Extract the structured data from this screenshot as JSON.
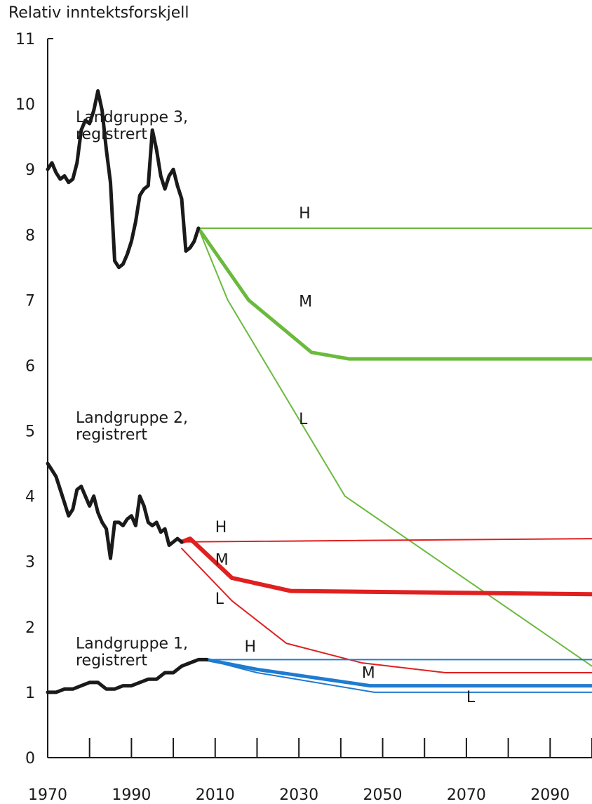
{
  "chart_data": {
    "type": "line",
    "title": "",
    "ylabel": "Relativ inntektsforskjell",
    "xlabel": "",
    "xlim": [
      1970,
      2100
    ],
    "ylim": [
      0,
      11
    ],
    "x_ticks": [
      1970,
      1990,
      2010,
      2030,
      2050,
      2070,
      2090
    ],
    "y_ticks": [
      0,
      1,
      2,
      3,
      4,
      5,
      6,
      7,
      8,
      9,
      10,
      11
    ],
    "grid": false,
    "colors": {
      "historical": "#1a1a1a",
      "group3": "#6aba3c",
      "group2": "#e02020",
      "group1": "#1f7bd0"
    },
    "groups": [
      {
        "label_line1": "Landgruppe 3,",
        "label_line2": "registrert",
        "color_key": "group3",
        "historical": [
          [
            1970,
            9.0
          ],
          [
            1971,
            9.1
          ],
          [
            1972,
            8.95
          ],
          [
            1973,
            8.85
          ],
          [
            1974,
            8.9
          ],
          [
            1975,
            8.8
          ],
          [
            1976,
            8.85
          ],
          [
            1977,
            9.1
          ],
          [
            1978,
            9.6
          ],
          [
            1979,
            9.75
          ],
          [
            1980,
            9.7
          ],
          [
            1981,
            9.9
          ],
          [
            1982,
            10.2
          ],
          [
            1983,
            9.9
          ],
          [
            1984,
            9.3
          ],
          [
            1985,
            8.8
          ],
          [
            1986,
            7.6
          ],
          [
            1987,
            7.5
          ],
          [
            1988,
            7.55
          ],
          [
            1989,
            7.7
          ],
          [
            1990,
            7.9
          ],
          [
            1991,
            8.2
          ],
          [
            1992,
            8.6
          ],
          [
            1993,
            8.7
          ],
          [
            1994,
            8.75
          ],
          [
            1995,
            9.6
          ],
          [
            1996,
            9.3
          ],
          [
            1997,
            8.9
          ],
          [
            1998,
            8.7
          ],
          [
            1999,
            8.9
          ],
          [
            2000,
            9.0
          ],
          [
            2001,
            8.75
          ],
          [
            2002,
            8.55
          ],
          [
            2003,
            7.75
          ],
          [
            2004,
            7.8
          ],
          [
            2005,
            7.9
          ],
          [
            2006,
            8.1
          ]
        ],
        "projections": [
          {
            "name": "H",
            "width": 2,
            "points": [
              [
                2006,
                8.1
              ],
              [
                2100,
                8.1
              ]
            ]
          },
          {
            "name": "M",
            "width": 5,
            "points": [
              [
                2006,
                8.1
              ],
              [
                2018,
                7.0
              ],
              [
                2033,
                6.2
              ],
              [
                2042,
                6.1
              ],
              [
                2100,
                6.1
              ]
            ]
          },
          {
            "name": "L",
            "width": 2,
            "points": [
              [
                2006,
                8.1
              ],
              [
                2013,
                7.0
              ],
              [
                2041,
                4.0
              ],
              [
                2100,
                1.4
              ]
            ]
          }
        ],
        "proj_labels": [
          {
            "text": "H",
            "x": 2030,
            "y": 8.25
          },
          {
            "text": "M",
            "x": 2030,
            "y": 6.9
          },
          {
            "text": "L",
            "x": 2030,
            "y": 5.1
          }
        ]
      },
      {
        "label_line1": "Landgruppe 2,",
        "label_line2": "registrert",
        "color_key": "group2",
        "historical": [
          [
            1970,
            4.5
          ],
          [
            1971,
            4.4
          ],
          [
            1972,
            4.3
          ],
          [
            1973,
            4.1
          ],
          [
            1974,
            3.9
          ],
          [
            1975,
            3.7
          ],
          [
            1976,
            3.8
          ],
          [
            1977,
            4.1
          ],
          [
            1978,
            4.15
          ],
          [
            1979,
            4.0
          ],
          [
            1980,
            3.85
          ],
          [
            1981,
            4.0
          ],
          [
            1982,
            3.75
          ],
          [
            1983,
            3.6
          ],
          [
            1984,
            3.5
          ],
          [
            1985,
            3.05
          ],
          [
            1986,
            3.6
          ],
          [
            1987,
            3.6
          ],
          [
            1988,
            3.55
          ],
          [
            1989,
            3.65
          ],
          [
            1990,
            3.7
          ],
          [
            1991,
            3.55
          ],
          [
            1992,
            4.0
          ],
          [
            1993,
            3.85
          ],
          [
            1994,
            3.6
          ],
          [
            1995,
            3.55
          ],
          [
            1996,
            3.6
          ],
          [
            1997,
            3.45
          ],
          [
            1998,
            3.5
          ],
          [
            1999,
            3.25
          ],
          [
            2000,
            3.3
          ],
          [
            2001,
            3.35
          ],
          [
            2002,
            3.3
          ]
        ],
        "projections": [
          {
            "name": "H",
            "width": 2,
            "points": [
              [
                2002,
                3.3
              ],
              [
                2100,
                3.35
              ]
            ]
          },
          {
            "name": "M",
            "width": 6,
            "points": [
              [
                2002,
                3.3
              ],
              [
                2004,
                3.35
              ],
              [
                2014,
                2.75
              ],
              [
                2028,
                2.55
              ],
              [
                2100,
                2.5
              ]
            ]
          },
          {
            "name": "L",
            "width": 2,
            "points": [
              [
                2002,
                3.2
              ],
              [
                2014,
                2.4
              ],
              [
                2027,
                1.75
              ],
              [
                2045,
                1.45
              ],
              [
                2065,
                1.3
              ],
              [
                2100,
                1.3
              ]
            ]
          }
        ],
        "proj_labels": [
          {
            "text": "H",
            "x": 2010,
            "y": 3.45
          },
          {
            "text": "M",
            "x": 2010,
            "y": 2.95
          },
          {
            "text": "L",
            "x": 2010,
            "y": 2.35
          }
        ]
      },
      {
        "label_line1": "Landgruppe 1,",
        "label_line2": "registrert",
        "color_key": "group1",
        "historical": [
          [
            1970,
            1.0
          ],
          [
            1972,
            1.0
          ],
          [
            1974,
            1.05
          ],
          [
            1976,
            1.05
          ],
          [
            1978,
            1.1
          ],
          [
            1980,
            1.15
          ],
          [
            1982,
            1.15
          ],
          [
            1984,
            1.05
          ],
          [
            1986,
            1.05
          ],
          [
            1988,
            1.1
          ],
          [
            1990,
            1.1
          ],
          [
            1992,
            1.15
          ],
          [
            1994,
            1.2
          ],
          [
            1996,
            1.2
          ],
          [
            1998,
            1.3
          ],
          [
            2000,
            1.3
          ],
          [
            2002,
            1.4
          ],
          [
            2004,
            1.45
          ],
          [
            2006,
            1.5
          ],
          [
            2008,
            1.5
          ]
        ],
        "projections": [
          {
            "name": "H",
            "width": 2,
            "points": [
              [
                2008,
                1.5
              ],
              [
                2100,
                1.5
              ]
            ]
          },
          {
            "name": "M",
            "width": 5,
            "points": [
              [
                2008,
                1.5
              ],
              [
                2020,
                1.35
              ],
              [
                2047,
                1.1
              ],
              [
                2100,
                1.1
              ]
            ]
          },
          {
            "name": "L",
            "width": 2,
            "points": [
              [
                2008,
                1.5
              ],
              [
                2020,
                1.3
              ],
              [
                2048,
                1.0
              ],
              [
                2100,
                1.0
              ]
            ]
          }
        ],
        "proj_labels": [
          {
            "text": "H",
            "x": 2017,
            "y": 1.62
          },
          {
            "text": "M",
            "x": 2045,
            "y": 1.22
          },
          {
            "text": "L",
            "x": 2070,
            "y": 0.85
          }
        ]
      }
    ]
  }
}
